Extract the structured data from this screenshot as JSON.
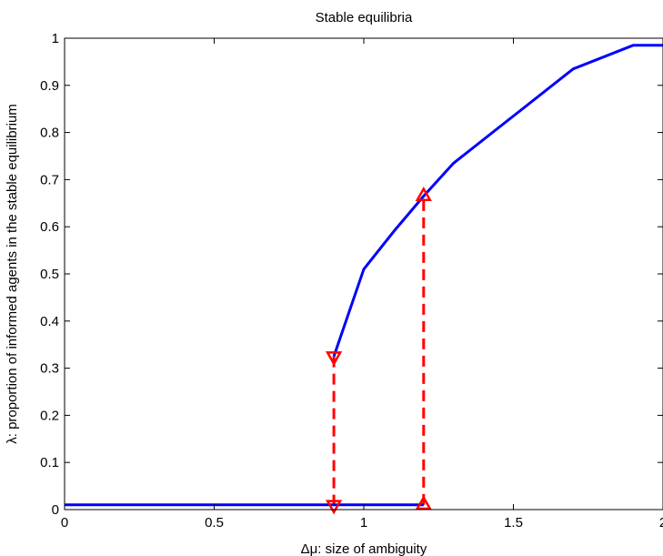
{
  "chart_data": {
    "type": "line",
    "title": "Stable equilibria",
    "xlabel": "Δμ: size of  ambiguity",
    "ylabel": "λ: proportion of informed agents in the stable equilibrium",
    "xlim": [
      0,
      2
    ],
    "ylim": [
      0,
      1
    ],
    "xticks": [
      0,
      0.5,
      1,
      1.5,
      2
    ],
    "xtick_labels": [
      "0",
      "0.5",
      "1",
      "1.5",
      "2"
    ],
    "yticks": [
      0,
      0.1,
      0.2,
      0.3,
      0.4,
      0.5,
      0.6,
      0.7,
      0.8,
      0.9,
      1
    ],
    "ytick_labels": [
      "0",
      "0.1",
      "0.2",
      "0.3",
      "0.4",
      "0.5",
      "0.6",
      "0.7",
      "0.8",
      "0.9",
      "1"
    ],
    "grid": false,
    "series": [
      {
        "color": "#0000ff",
        "style": "solid",
        "x": [
          0,
          1.2
        ],
        "y": [
          0.01,
          0.01
        ]
      },
      {
        "color": "#0000ff",
        "style": "solid",
        "x": [
          0.9,
          1.0,
          1.1,
          1.2,
          1.3,
          1.5,
          1.7,
          1.9,
          2.0
        ],
        "y": [
          0.325,
          0.51,
          0.59,
          0.665,
          0.735,
          0.835,
          0.935,
          0.985,
          0.985
        ]
      }
    ],
    "arrows": [
      {
        "color": "#ff0000",
        "style": "dashed",
        "x": 0.9,
        "y_from": 0.325,
        "y_to": 0.01,
        "marker": "triangle-down"
      },
      {
        "color": "#ff0000",
        "style": "dashed",
        "x": 1.2,
        "y_from": 0.01,
        "y_to": 0.665,
        "marker": "triangle-up"
      }
    ]
  }
}
